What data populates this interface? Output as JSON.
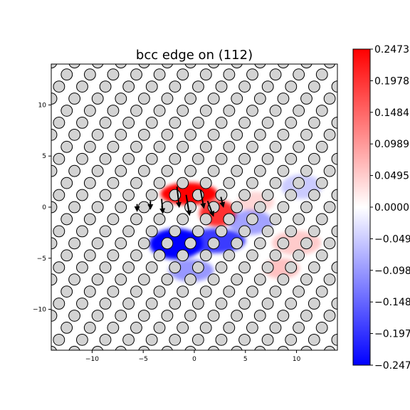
{
  "chart_data": {
    "type": "heatmap",
    "title": "bcc edge on (112)",
    "xlabel": "",
    "ylabel": "",
    "xlim": [
      -14,
      14
    ],
    "ylim": [
      -14,
      14
    ],
    "x_ticks": [
      -10,
      -5,
      0,
      5,
      10
    ],
    "y_ticks": [
      -10,
      -5,
      0,
      5,
      10
    ],
    "x_tick_labels": [
      "−10",
      "−5",
      "0",
      "5",
      "10"
    ],
    "y_tick_labels": [
      "−10",
      "−5",
      "0",
      "5",
      "10"
    ],
    "colormap": "bwr",
    "colors": {
      "positive": "#ff0000",
      "zero": "#ffffff",
      "negative": "#0000ff"
    },
    "colorbar": {
      "range": [
        -0.2473,
        0.2473
      ],
      "ticks": [
        0.2473,
        0.1978,
        0.1484,
        0.0989,
        0.0495,
        0.0,
        -0.0495,
        -0.0989,
        -0.1484,
        -0.1978,
        -0.2473
      ],
      "tick_labels": [
        "0.2473",
        "0.1978",
        "0.1484",
        "0.0989",
        "0.0495",
        "0.0000",
        "−0.0495",
        "−0.0989",
        "−0.1484",
        "−0.1978",
        "−0.2473"
      ]
    },
    "lattice": {
      "row_spacing": 1.18,
      "col_spacing": 2.27,
      "row_shift": 0.757,
      "atom_diameter": 1.1
    },
    "field_blobs": [
      {
        "x": -0.5,
        "y": 1.3,
        "sx": 2.8,
        "sy": 1.1,
        "value": 0.2473
      },
      {
        "x": 2.3,
        "y": -0.6,
        "sx": 1.8,
        "sy": 1.3,
        "value": 0.2
      },
      {
        "x": 6.0,
        "y": 0.5,
        "sx": 1.8,
        "sy": 1.0,
        "value": 0.04
      },
      {
        "x": -1.8,
        "y": -3.6,
        "sx": 2.6,
        "sy": 1.5,
        "value": -0.2473
      },
      {
        "x": 2.0,
        "y": -3.3,
        "sx": 3.0,
        "sy": 1.2,
        "value": -0.19
      },
      {
        "x": 5.5,
        "y": -1.5,
        "sx": 2.2,
        "sy": 1.2,
        "value": -0.09
      },
      {
        "x": -0.3,
        "y": -6.2,
        "sx": 2.2,
        "sy": 1.1,
        "value": -0.1
      },
      {
        "x": 10.5,
        "y": 2.0,
        "sx": 2.0,
        "sy": 1.2,
        "value": -0.05
      },
      {
        "x": 10.0,
        "y": -3.5,
        "sx": 2.4,
        "sy": 1.2,
        "value": 0.05
      },
      {
        "x": 8.5,
        "y": -6.0,
        "sx": 1.8,
        "sy": 1.0,
        "value": 0.06
      }
    ],
    "displacement_arrows": [
      {
        "x": -1.7,
        "y": 2.0,
        "dx": 0.2,
        "dy": -1.8
      },
      {
        "x": -0.8,
        "y": 1.2,
        "dx": 0.3,
        "dy": -1.8
      },
      {
        "x": 0.6,
        "y": 1.7,
        "dx": 0.3,
        "dy": -1.6
      },
      {
        "x": 1.3,
        "y": 0.6,
        "dx": 0.5,
        "dy": -1.3
      },
      {
        "x": -3.2,
        "y": 0.8,
        "dx": 0.1,
        "dy": -1.2
      },
      {
        "x": 2.6,
        "y": 1.0,
        "dx": 0.2,
        "dy": -0.8
      },
      {
        "x": -4.3,
        "y": 0.6,
        "dx": 0.0,
        "dy": -0.6
      },
      {
        "x": -5.6,
        "y": 0.3,
        "dx": 0.0,
        "dy": -0.5
      }
    ]
  }
}
